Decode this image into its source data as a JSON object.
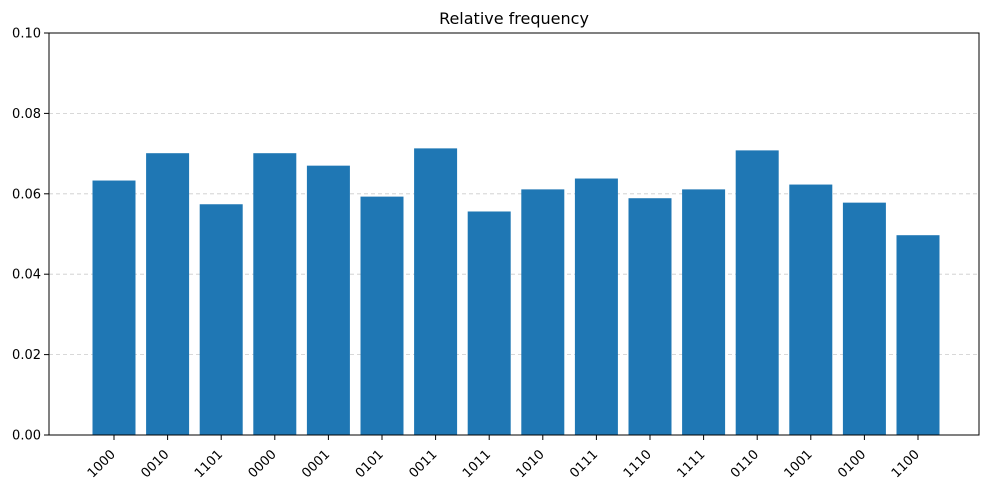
{
  "chart_data": {
    "type": "bar",
    "title": "Relative frequency",
    "xlabel": "",
    "ylabel": "",
    "categories": [
      "1000",
      "0010",
      "1101",
      "0000",
      "0001",
      "0101",
      "0011",
      "1011",
      "1010",
      "0111",
      "1110",
      "1111",
      "0110",
      "1001",
      "0100",
      "1100"
    ],
    "values": [
      0.0633,
      0.0701,
      0.0574,
      0.0701,
      0.067,
      0.0593,
      0.0713,
      0.0556,
      0.0611,
      0.0638,
      0.0589,
      0.0611,
      0.0708,
      0.0623,
      0.0578,
      0.0497
    ],
    "ylim": [
      0,
      0.1
    ],
    "yticks": [
      "0.00",
      "0.02",
      "0.04",
      "0.06",
      "0.08",
      "0.10"
    ],
    "grid": "y-dashed",
    "bar_color": "#1f77b4",
    "grid_color": "#cccccc"
  }
}
